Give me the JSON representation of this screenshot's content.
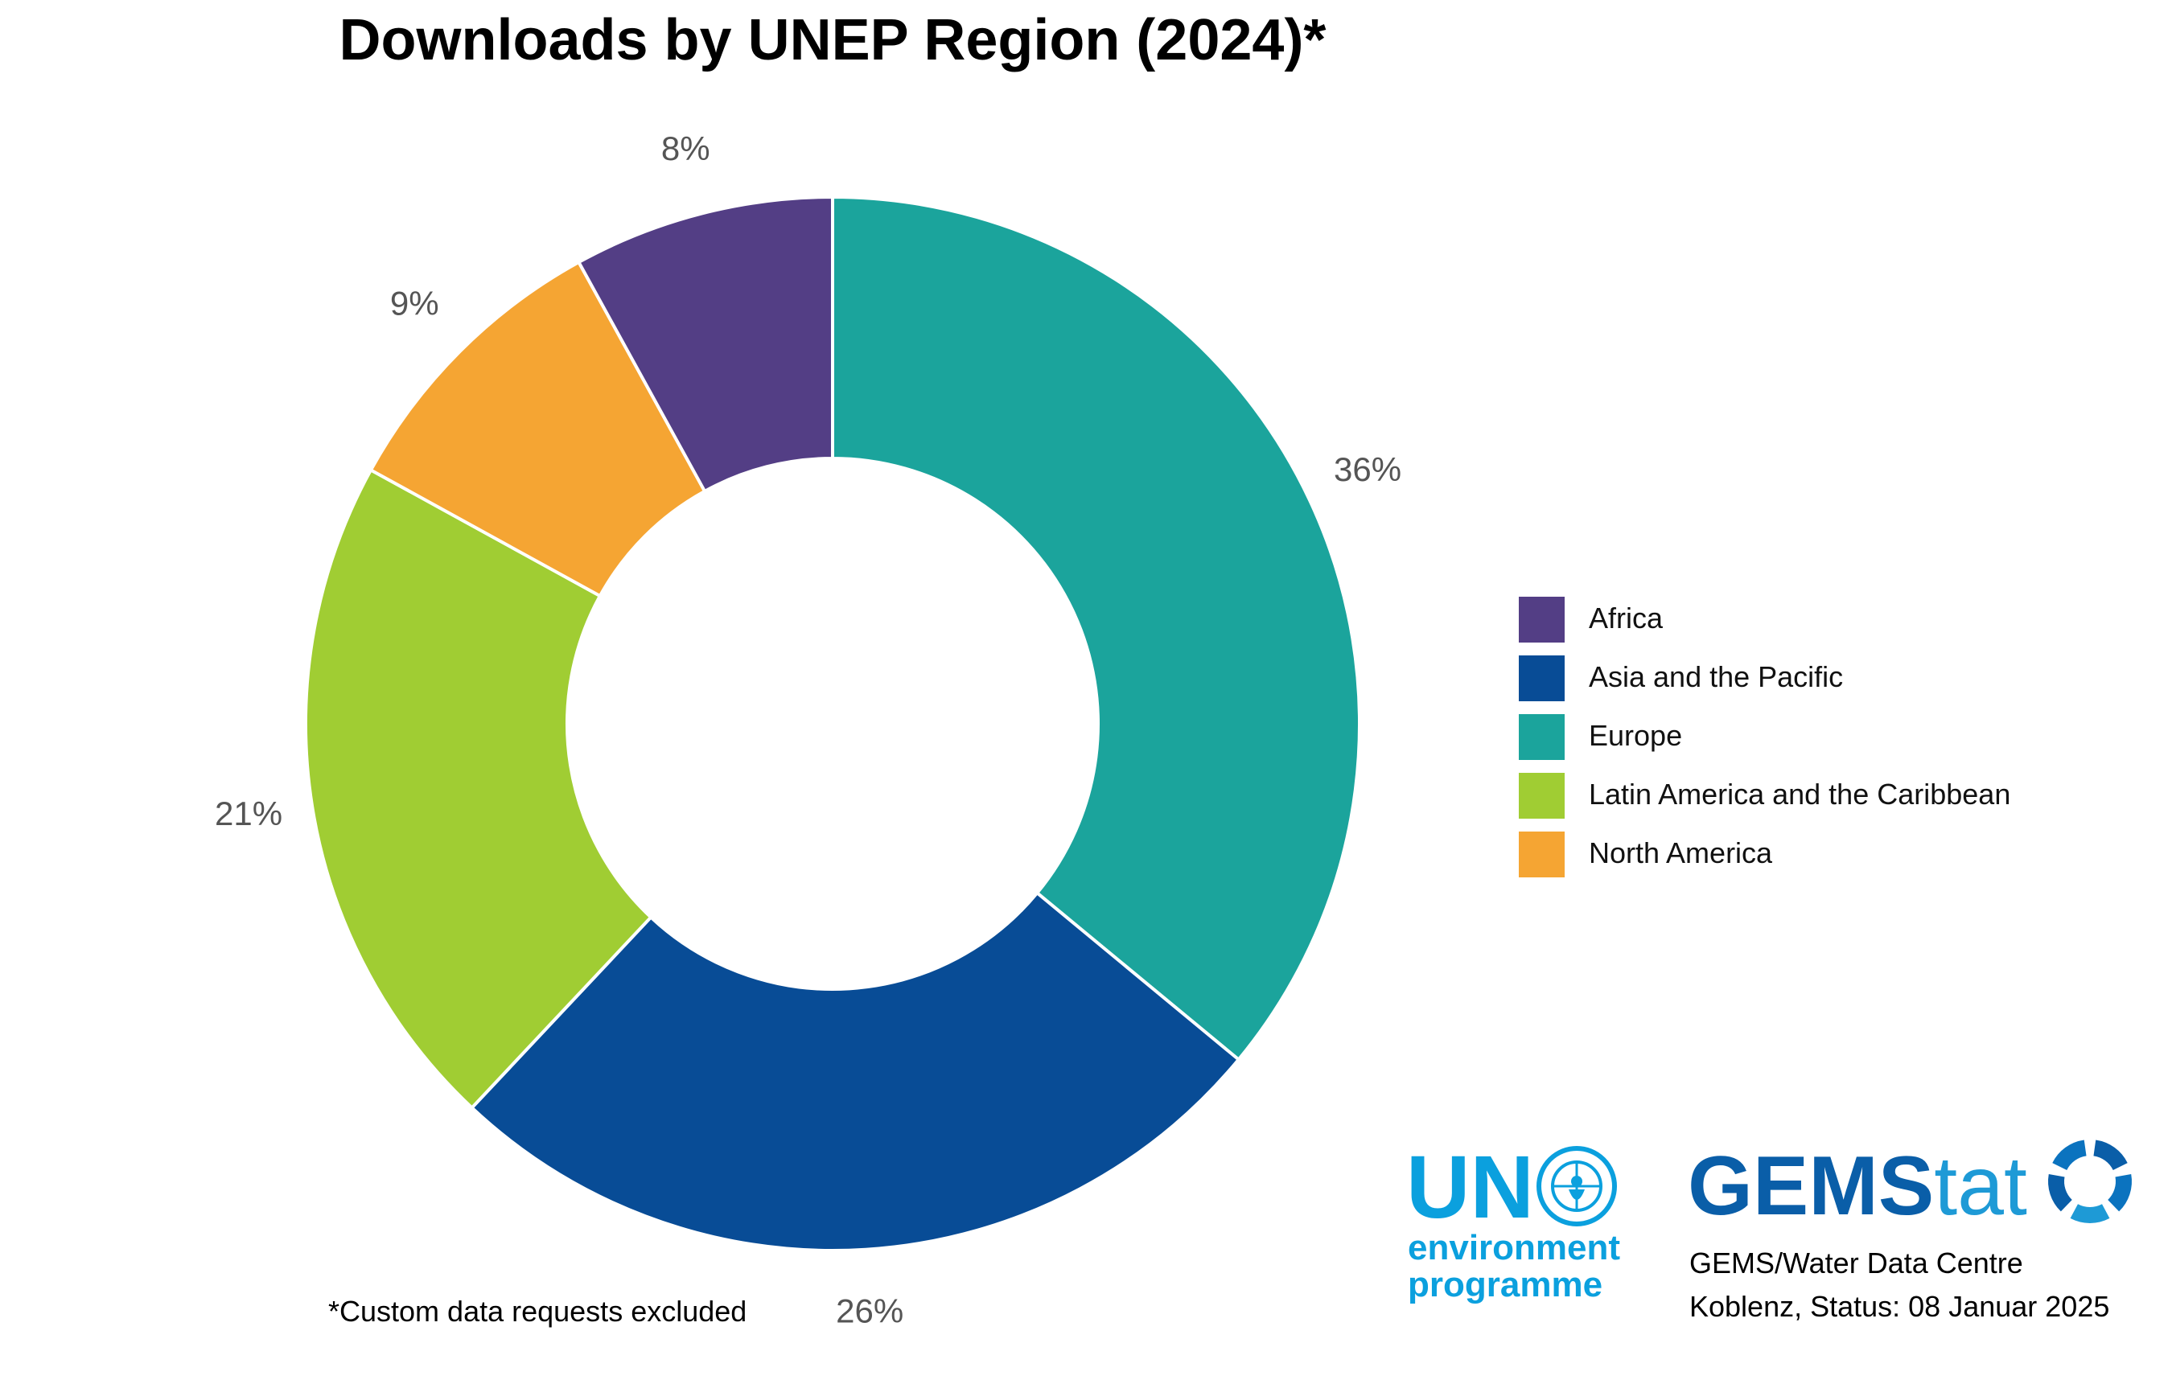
{
  "chart_data": {
    "type": "pie",
    "variant": "donut",
    "title": "Downloads by UNEP Region (2024)*",
    "categories": [
      "Africa",
      "Asia and the Pacific",
      "Europe",
      "Latin America and the Caribbean",
      "North America"
    ],
    "values": [
      8,
      26,
      36,
      21,
      9
    ],
    "labels": [
      "8%",
      "26%",
      "36%",
      "21%",
      "9%"
    ],
    "unit": "%",
    "slice_order_clockwise_from_top": [
      "Europe",
      "Asia and the Pacific",
      "Latin America and the Caribbean",
      "North America",
      "Africa"
    ],
    "colors": {
      "Africa": "#533e85",
      "Asia and the Pacific": "#084c96",
      "Europe": "#1ba49c",
      "Latin America and the Caribbean": "#a0cd33",
      "North America": "#f5a533"
    },
    "legend_position": "right",
    "footnote": "*Custom data requests excluded"
  },
  "logos": {
    "un": {
      "big": "UN",
      "line1": "environment",
      "line2": "programme",
      "color": "#0ba0de",
      "icon": "un-emblem-icon"
    },
    "gemstat": {
      "bold": "GEMS",
      "light": "tat",
      "color": "#0a5ea8",
      "icon": "gemstat-ring-icon"
    }
  },
  "credits": {
    "line1": "GEMS/Water Data Centre",
    "line2": "Koblenz, Status: 08 Januar 2025"
  }
}
